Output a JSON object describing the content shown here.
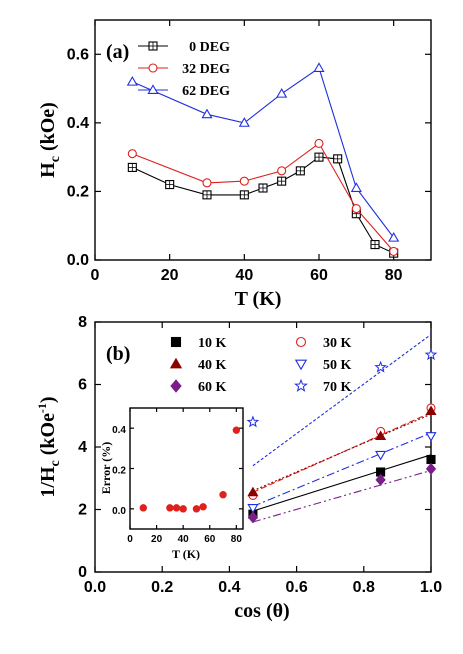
{
  "chart_data": [
    {
      "type": "line",
      "panel_label": "(a)",
      "xlabel": "T (K)",
      "ylabel_main": "H",
      "ylabel_sub": "c",
      "ylabel_unit": " (kOe)",
      "xlim": [
        0,
        90
      ],
      "ylim": [
        0,
        0.7
      ],
      "xticks": [
        0,
        20,
        40,
        60,
        80
      ],
      "yticks": [
        0.0,
        0.2,
        0.4,
        0.6
      ],
      "ytick_labels": [
        "0.0",
        "0.2",
        "0.4",
        "0.6"
      ],
      "legend_position": "top-left",
      "series": [
        {
          "name": "0 DEG",
          "color": "#000000",
          "marker": "square",
          "x": [
            10,
            20,
            30,
            40,
            45,
            50,
            55,
            60,
            65,
            70,
            75,
            80
          ],
          "y": [
            0.27,
            0.22,
            0.19,
            0.19,
            0.21,
            0.23,
            0.26,
            0.3,
            0.295,
            0.135,
            0.045,
            0.02
          ]
        },
        {
          "name": "32 DEG",
          "color": "#e0201c",
          "marker": "circle",
          "x": [
            10,
            30,
            40,
            50,
            60,
            70,
            80
          ],
          "y": [
            0.31,
            0.225,
            0.23,
            0.26,
            0.34,
            0.15,
            0.025
          ]
        },
        {
          "name": "62 DEG",
          "color": "#1f2ee0",
          "marker": "triangle-up",
          "x": [
            10,
            30,
            40,
            50,
            60,
            70,
            80
          ],
          "y": [
            0.52,
            0.425,
            0.4,
            0.485,
            0.56,
            0.21,
            0.065
          ]
        }
      ]
    },
    {
      "type": "scatter",
      "panel_label": "(b)",
      "xlabel": "cos (θ)",
      "ylabel_main": "1/H",
      "ylabel_sub": "c",
      "ylabel_unit": " (kOe",
      "ylabel_sup": "-1",
      "ylabel_close": ")",
      "xlim": [
        0,
        1.0
      ],
      "ylim": [
        0,
        8
      ],
      "xticks": [
        0.0,
        0.2,
        0.4,
        0.6,
        0.8,
        1.0
      ],
      "xtick_labels": [
        "0.0",
        "0.2",
        "0.4",
        "0.6",
        "0.8",
        "1.0"
      ],
      "yticks": [
        0,
        2,
        4,
        6,
        8
      ],
      "ytick_labels": [
        "0",
        "2",
        "4",
        "6",
        "8"
      ],
      "legend_position": "top",
      "series": [
        {
          "name": "10 K",
          "color": "#000000",
          "marker": "filled-square",
          "line_style": "solid",
          "x": [
            0.47,
            0.85,
            1.0
          ],
          "y": [
            1.85,
            3.2,
            3.6
          ],
          "fit": [
            [
              0.47,
              1.95
            ],
            [
              1.0,
              3.75
            ]
          ]
        },
        {
          "name": "30 K",
          "color": "#e0201c",
          "marker": "circle",
          "line_style": "dash",
          "x": [
            0.47,
            0.85,
            1.0
          ],
          "y": [
            2.45,
            4.5,
            5.25
          ],
          "fit": [
            [
              0.47,
              2.55
            ],
            [
              1.0,
              5.1
            ]
          ]
        },
        {
          "name": "40 K",
          "color": "#8b0000",
          "marker": "filled-triangle-up",
          "line_style": "dot",
          "x": [
            0.47,
            0.85,
            1.0
          ],
          "y": [
            2.55,
            4.35,
            5.15
          ],
          "fit": [
            [
              0.47,
              2.6
            ],
            [
              1.0,
              5.05
            ]
          ]
        },
        {
          "name": "50 K",
          "color": "#1f2ee0",
          "marker": "triangle-down",
          "line_style": "dashdot",
          "x": [
            0.47,
            0.85,
            1.0
          ],
          "y": [
            2.05,
            3.75,
            4.35
          ],
          "fit": [
            [
              0.47,
              2.1
            ],
            [
              1.0,
              4.45
            ]
          ]
        },
        {
          "name": "60 K",
          "color": "#7a1f8a",
          "marker": "filled-diamond",
          "line_style": "dashdotdot",
          "x": [
            0.47,
            0.85,
            1.0
          ],
          "y": [
            1.75,
            2.95,
            3.3
          ],
          "fit": [
            [
              0.47,
              1.6
            ],
            [
              1.0,
              3.25
            ]
          ]
        },
        {
          "name": "70 K",
          "color": "#1f2ee0",
          "marker": "star",
          "line_style": "shortdash",
          "x": [
            0.47,
            0.85,
            1.0
          ],
          "y": [
            4.8,
            6.55,
            6.95
          ],
          "fit": [
            [
              0.47,
              3.4
            ],
            [
              1.0,
              7.6
            ]
          ]
        }
      ],
      "inset": {
        "type": "scatter",
        "xlabel": "T (K)",
        "ylabel": "Error (%)",
        "xlim": [
          0,
          85
        ],
        "ylim": [
          -0.1,
          0.5
        ],
        "xticks": [
          0,
          20,
          40,
          60,
          80
        ],
        "yticks": [
          0.0,
          0.2,
          0.4
        ],
        "ytick_labels": [
          "0.0",
          "0.2",
          "0.4"
        ],
        "color": "#e0201c",
        "x": [
          10,
          30,
          35,
          40,
          50,
          55,
          70,
          80
        ],
        "y": [
          0.005,
          0.005,
          0.005,
          0.0,
          0.0,
          0.01,
          0.07,
          0.39
        ]
      }
    }
  ]
}
